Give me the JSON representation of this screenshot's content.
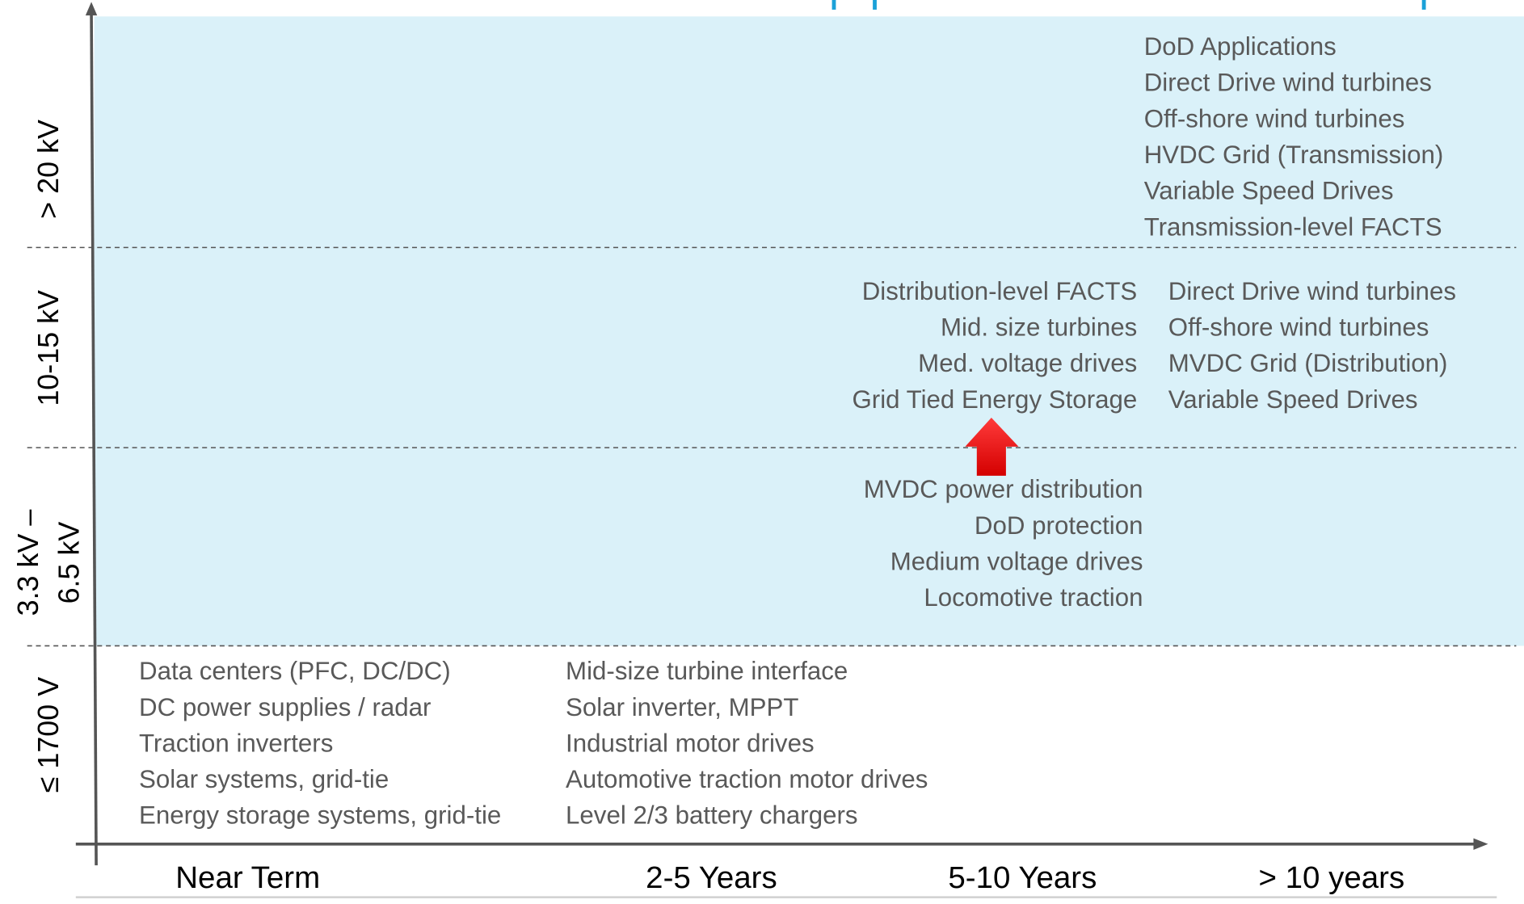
{
  "y_axis": {
    "labels": [
      [
        "> 20 kV"
      ],
      [
        "10-15 kV"
      ],
      [
        "3.3 kV –",
        "6.5 kV"
      ],
      [
        "≤ 1700 V"
      ]
    ]
  },
  "x_axis": {
    "labels": [
      "Near Term",
      "2-5 Years",
      "5-10 Years",
      "> 10 years"
    ]
  },
  "groups": [
    {
      "items": [
        "DoD Applications",
        "Direct Drive wind turbines",
        "Off-shore wind turbines",
        "HVDC Grid (Transmission)",
        "Variable Speed Drives",
        "Transmission-level FACTS"
      ]
    },
    {
      "items": [
        "Distribution-level FACTS",
        "Mid. size turbines",
        "Med. voltage drives",
        "Grid Tied Energy Storage"
      ]
    },
    {
      "items": [
        "Direct Drive wind turbines",
        "Off-shore wind turbines",
        "MVDC Grid (Distribution)",
        "Variable Speed Drives"
      ]
    },
    {
      "items": [
        "MVDC power distribution",
        "DoD protection",
        "Medium voltage drives",
        "Locomotive traction"
      ]
    },
    {
      "items": [
        "Data centers  (PFC, DC/DC)",
        "DC power supplies / radar",
        "Traction inverters",
        "Solar systems, grid-tie",
        "Energy storage systems, grid-tie"
      ]
    },
    {
      "items": [
        "Mid-size turbine interface",
        "Solar inverter, MPPT",
        "Industrial motor drives",
        "Automotive traction motor drives",
        "Level 2/3 battery chargers"
      ]
    }
  ]
}
